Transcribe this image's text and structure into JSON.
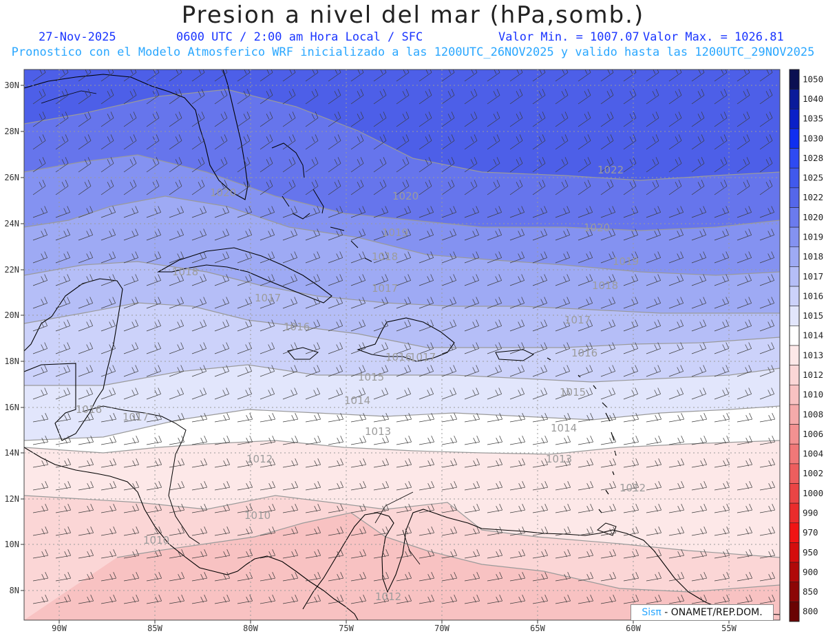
{
  "title": "Presion a nivel del mar (hPa,somb.)",
  "subheader": {
    "date": "27-Nov-2025",
    "time": "0600 UTC / 2:00 am Hora Local / SFC",
    "vmin": "Valor Min. = 1007.07",
    "vmax": "Valor Max. = 1026.81"
  },
  "forecast_line": "Pronostico con el Modelo Atmosferico WRF inicializado a las 1200UTC_26NOV2025 y valido hasta las  1200UTC_29NOV2025",
  "credit": {
    "brand": "Sisπ",
    "text": " - ONAMET/REP.DOM."
  },
  "lon_labels": [
    "90W",
    "85W",
    "80W",
    "75W",
    "70W",
    "65W",
    "60W",
    "55W"
  ],
  "lat_labels": [
    "30N",
    "28N",
    "26N",
    "24N",
    "22N",
    "20N",
    "18N",
    "16N",
    "14N",
    "12N",
    "10N",
    "8N"
  ],
  "colorbar": {
    "levels": [
      "1050",
      "1040",
      "1035",
      "1030",
      "1028",
      "1025",
      "1022",
      "1020",
      "1019",
      "1018",
      "1017",
      "1016",
      "1015",
      "1014",
      "1013",
      "1012",
      "1010",
      "1008",
      "1006",
      "1004",
      "1002",
      "1000",
      "990",
      "970",
      "950",
      "900",
      "850",
      "800"
    ],
    "colors": [
      "#0b0f52",
      "#0a1a9a",
      "#0a20c8",
      "#0f2ef0",
      "#2e4af2",
      "#4159ec",
      "#5567ea",
      "#6b7bee",
      "#8492f1",
      "#9eaaf4",
      "#b5bef7",
      "#ccd2fa",
      "#e2e6fc",
      "#ffffff",
      "#fde8e8",
      "#fbd6d6",
      "#f8c2c2",
      "#f5aaaa",
      "#f39191",
      "#f07878",
      "#ed5e5e",
      "#ea4545",
      "#ea2c2c",
      "#f01414",
      "#d40d0d",
      "#b00909",
      "#8c0606",
      "#6a0303"
    ]
  },
  "contour_labels": [
    "1022",
    "1020",
    "1020",
    "1020",
    "1019",
    "1019",
    "1018",
    "1018",
    "1018",
    "1017",
    "1017",
    "1017",
    "1016",
    "1016",
    "1016",
    "1015",
    "1015",
    "1014",
    "1014",
    "1013",
    "1013",
    "1012",
    "1012",
    "1010",
    "1010",
    "1017",
    "1016",
    "1017",
    "1012"
  ],
  "map_features": [
    "Florida",
    "Bahamas",
    "Cuba",
    "Jamaica",
    "Hispaniola",
    "Puerto Rico",
    "Lesser Antilles",
    "Yucatan",
    "Central America",
    "Venezuela",
    "Colombia"
  ]
}
